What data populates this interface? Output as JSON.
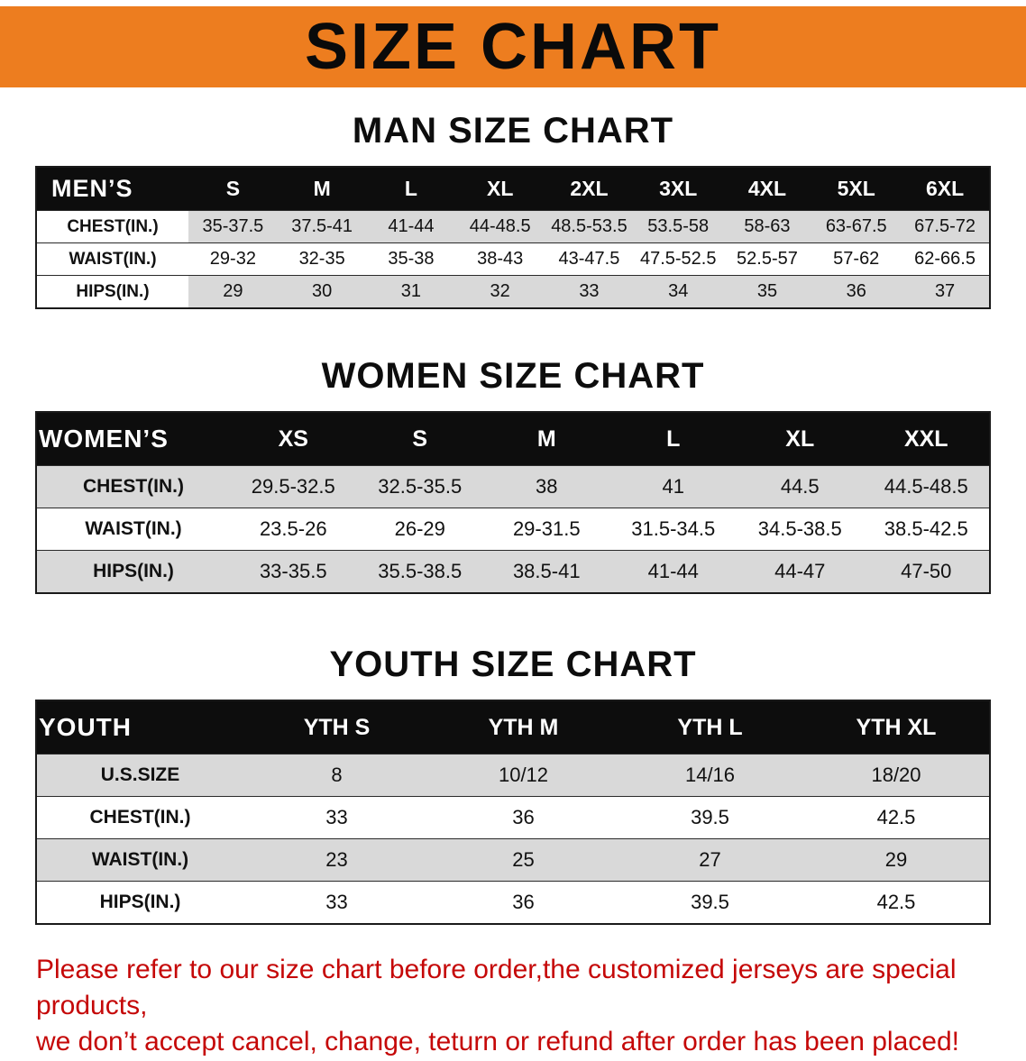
{
  "colors": {
    "banner_orange": "#ed7d1f",
    "header_black": "#0d0d0d",
    "row_gray": "#d9d9d9",
    "note_red": "#c50808"
  },
  "banner": {
    "title": "SIZE CHART"
  },
  "sections": [
    {
      "heading": "MAN SIZE CHART",
      "table": {
        "header": [
          "MEN’S",
          "S",
          "M",
          "L",
          "XL",
          "2XL",
          "3XL",
          "4XL",
          "5XL",
          "6XL"
        ],
        "rows": [
          {
            "label": "CHEST(IN.)",
            "values": [
              "35-37.5",
              "37.5-41",
              "41-44",
              "44-48.5",
              "48.5-53.5",
              "53.5-58",
              "58-63",
              "63-67.5",
              "67.5-72"
            ]
          },
          {
            "label": "WAIST(IN.)",
            "values": [
              "29-32",
              "32-35",
              "35-38",
              "38-43",
              "43-47.5",
              "47.5-52.5",
              "52.5-57",
              "57-62",
              "62-66.5"
            ]
          },
          {
            "label": "HIPS(IN.)",
            "values": [
              "29",
              "30",
              "31",
              "32",
              "33",
              "34",
              "35",
              "36",
              "37"
            ]
          }
        ]
      }
    },
    {
      "heading": "WOMEN SIZE CHART",
      "table": {
        "header": [
          "WOMEN’S",
          "XS",
          "S",
          "M",
          "L",
          "XL",
          "XXL"
        ],
        "rows": [
          {
            "label": "CHEST(IN.)",
            "values": [
              "29.5-32.5",
              "32.5-35.5",
              "38",
              "41",
              "44.5",
              "44.5-48.5"
            ]
          },
          {
            "label": "WAIST(IN.)",
            "values": [
              "23.5-26",
              "26-29",
              "29-31.5",
              "31.5-34.5",
              "34.5-38.5",
              "38.5-42.5"
            ]
          },
          {
            "label": "HIPS(IN.)",
            "values": [
              "33-35.5",
              "35.5-38.5",
              "38.5-41",
              "41-44",
              "44-47",
              "47-50"
            ]
          }
        ]
      }
    },
    {
      "heading": "YOUTH SIZE CHART",
      "table": {
        "header": [
          "YOUTH",
          "YTH S",
          "YTH M",
          "YTH L",
          "YTH XL"
        ],
        "rows": [
          {
            "label": "U.S.SIZE",
            "values": [
              "8",
              "10/12",
              "14/16",
              "18/20"
            ]
          },
          {
            "label": "CHEST(IN.)",
            "values": [
              "33",
              "36",
              "39.5",
              "42.5"
            ]
          },
          {
            "label": "WAIST(IN.)",
            "values": [
              "23",
              "25",
              "27",
              "29"
            ]
          },
          {
            "label": "HIPS(IN.)",
            "values": [
              "33",
              "36",
              "39.5",
              "42.5"
            ]
          }
        ]
      }
    }
  ],
  "footer": {
    "line1": "Please refer to our size chart before order,the customized jerseys are special products,",
    "line2": "we don’t accept cancel, change, teturn or refund after order has been placed!"
  }
}
